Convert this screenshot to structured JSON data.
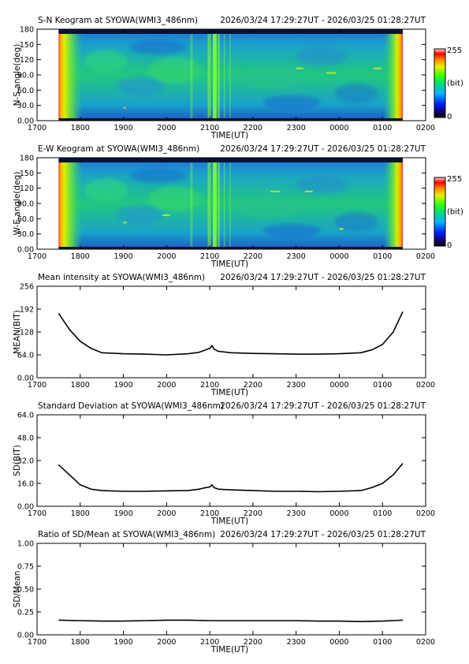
{
  "header": {
    "range": "2026/03/24 17:29:27UT - 2026/03/25 01:28:27UT"
  },
  "x_ticks": [
    "1700",
    "1800",
    "1900",
    "2000",
    "2100",
    "2200",
    "2300",
    "0000",
    "0100",
    "0200"
  ],
  "xlabel": "TIME(UT)",
  "colorbar": {
    "max": "255",
    "min": "0",
    "unit": "(bit)"
  },
  "chart_data": [
    {
      "type": "heatmap",
      "title": "S-N Keogram at SYOWA(WMI3_486nm)",
      "ylabel": "N-S angle(deg)",
      "xlabel": "TIME(UT)",
      "y_ticks": [
        "180",
        "150",
        "120",
        "90.0",
        "60.0",
        "30.0",
        "0.00"
      ],
      "ylim": [
        0,
        180
      ],
      "xlim": [
        "17:00",
        "02:00"
      ],
      "data_span": [
        "17:29:27",
        "01:28:27"
      ],
      "color_scale": [
        0,
        255
      ],
      "colormap": "rainbow",
      "features": {
        "bright_edges_at": [
          "start",
          "end"
        ],
        "bright_vertical_band_at": "21:00",
        "background": "green-blue"
      }
    },
    {
      "type": "heatmap",
      "title": "E-W Keogram at SYOWA(WMI3_486nm)",
      "ylabel": "W-E angle(deg)",
      "xlabel": "TIME(UT)",
      "y_ticks": [
        "180",
        "150",
        "120",
        "90.0",
        "60.0",
        "30.0",
        "0.00"
      ],
      "ylim": [
        0,
        180
      ],
      "xlim": [
        "17:00",
        "02:00"
      ],
      "data_span": [
        "17:29:27",
        "01:28:27"
      ],
      "color_scale": [
        0,
        255
      ],
      "colormap": "rainbow",
      "features": {
        "bright_edges_at": [
          "start",
          "end"
        ],
        "bright_vertical_band_at": "21:00",
        "background": "green-blue"
      }
    },
    {
      "type": "line",
      "title": "Mean intensity at SYOWA(WMI3_486nm)",
      "ylabel": "MEAN(BIT)",
      "xlabel": "TIME(UT)",
      "y_ticks": [
        "256",
        "192",
        "128",
        "64.0",
        "0.00"
      ],
      "ylim": [
        0,
        256
      ],
      "x_hours": [
        17.5,
        17.75,
        18.0,
        18.25,
        18.5,
        19.0,
        19.5,
        20.0,
        20.5,
        20.75,
        20.9,
        21.0,
        21.05,
        21.1,
        21.2,
        21.5,
        22.0,
        22.5,
        23.0,
        23.5,
        24.0,
        24.5,
        24.75,
        25.0,
        25.25,
        25.47
      ],
      "values": [
        180,
        135,
        102,
        82,
        70,
        67,
        66,
        64,
        67,
        71,
        78,
        82,
        90,
        80,
        74,
        70,
        68,
        67,
        66,
        66,
        67,
        70,
        78,
        93,
        128,
        185
      ]
    },
    {
      "type": "line",
      "title": "Standard Deviation at SYOWA(WMI3_486nm)",
      "ylabel": "SD(BIT)",
      "xlabel": "TIME(UT)",
      "y_ticks": [
        "64.0",
        "48.0",
        "32.0",
        "16.0",
        "0.00"
      ],
      "ylim": [
        0,
        64
      ],
      "x_hours": [
        17.5,
        17.75,
        18.0,
        18.25,
        18.5,
        19.0,
        19.5,
        20.0,
        20.5,
        20.75,
        20.9,
        21.0,
        21.05,
        21.1,
        21.2,
        21.5,
        22.0,
        22.5,
        23.0,
        23.5,
        24.0,
        24.5,
        24.75,
        25.0,
        25.25,
        25.47
      ],
      "values": [
        29,
        22,
        15,
        12,
        11,
        10.5,
        10.5,
        10.8,
        11,
        12,
        13,
        13.5,
        15,
        13,
        12,
        11.5,
        11,
        10.5,
        10.5,
        10.2,
        10.5,
        11,
        13,
        16,
        22,
        30
      ]
    },
    {
      "type": "line",
      "title": "Ratio of SD/Mean at SYOWA(WMI3_486nm)",
      "ylabel": "SD/Mean",
      "xlabel": "TIME(UT)",
      "y_ticks": [
        "1.00",
        "0.75",
        "0.50",
        "0.25",
        "0.00"
      ],
      "ylim": [
        0,
        1
      ],
      "x_hours": [
        17.5,
        18.0,
        18.5,
        19.0,
        19.5,
        20.0,
        20.5,
        21.0,
        21.5,
        22.0,
        22.5,
        23.0,
        23.5,
        24.0,
        24.5,
        25.0,
        25.47
      ],
      "values": [
        0.16,
        0.155,
        0.15,
        0.15,
        0.155,
        0.16,
        0.16,
        0.155,
        0.155,
        0.155,
        0.155,
        0.155,
        0.15,
        0.15,
        0.145,
        0.15,
        0.16
      ]
    }
  ]
}
